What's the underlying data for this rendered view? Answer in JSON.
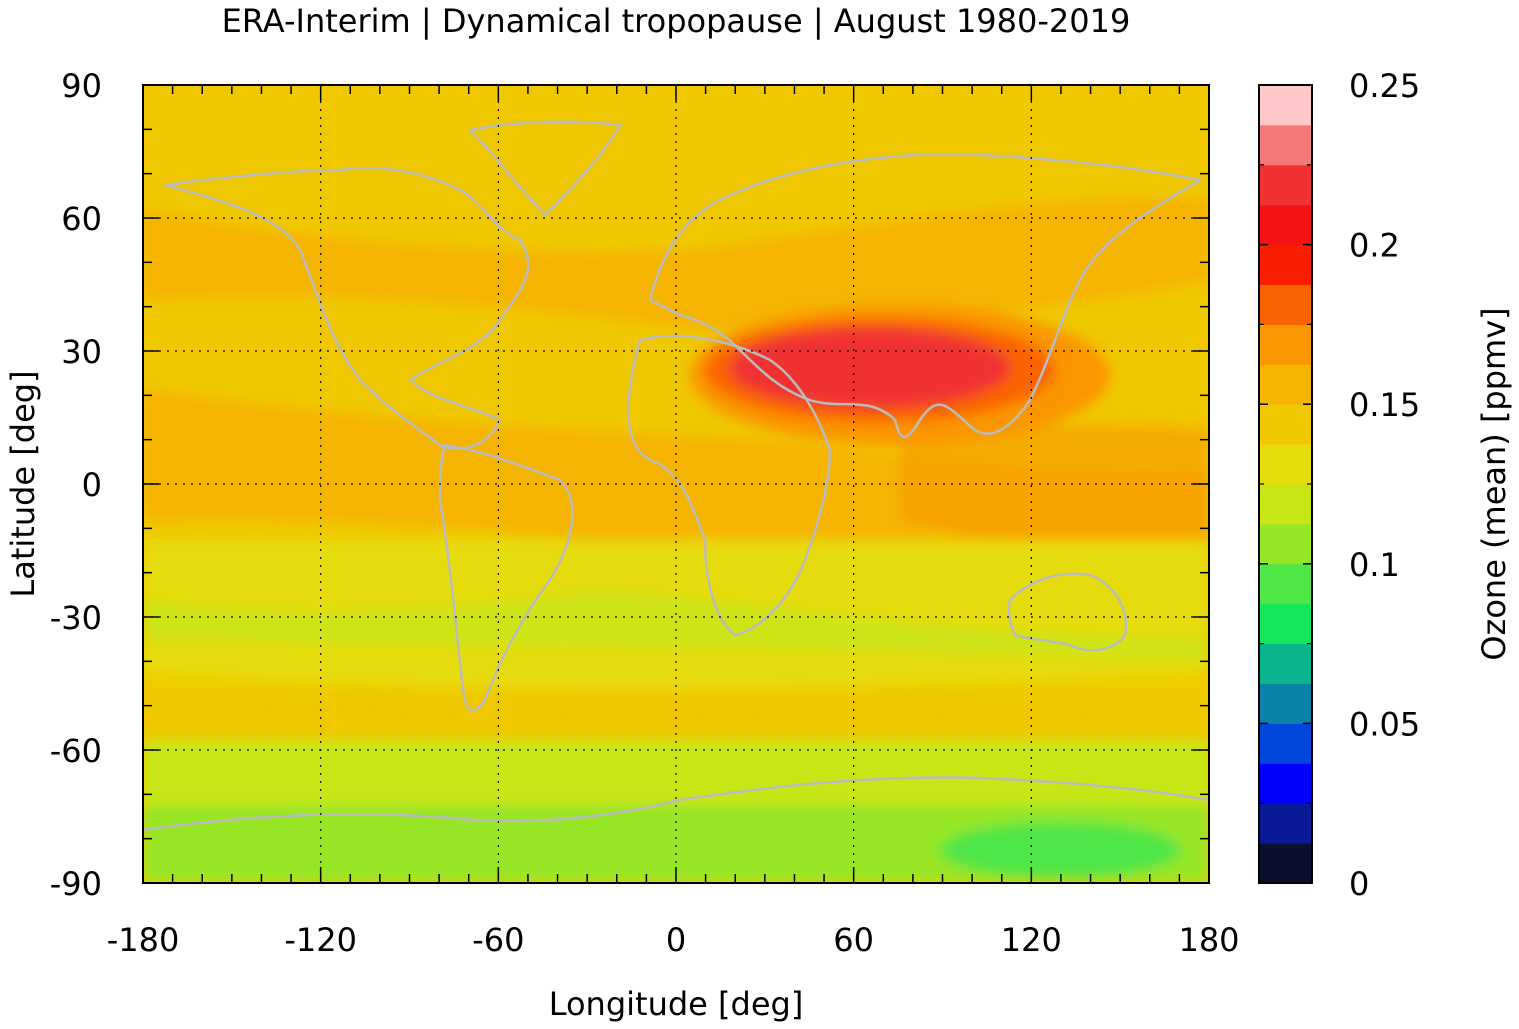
{
  "chart_data": {
    "type": "heatmap",
    "title": "ERA-Interim | Dynamical tropopause | August 1980-2019",
    "xlabel": "Longitude [deg]",
    "ylabel": "Latitude [deg]",
    "xlim": [
      -180,
      180
    ],
    "ylim": [
      -90,
      90
    ],
    "x_ticks": [
      "-180",
      "-120",
      "-60",
      "0",
      "60",
      "120",
      "180"
    ],
    "y_ticks": [
      "90",
      "60",
      "30",
      "0",
      "-30",
      "-60",
      "-90"
    ],
    "grid": true,
    "colorbar": {
      "label": "Ozone (mean) [ppmv]",
      "range": [
        0,
        0.25
      ],
      "step": 0.0125,
      "ticks": [
        "0",
        "0.05",
        "0.1",
        "0.15",
        "0.2",
        "0.25"
      ],
      "colors": [
        "#0a0f2e",
        "#0a1a96",
        "#0000ff",
        "#0046dc",
        "#0a82aa",
        "#0ab48c",
        "#14e65a",
        "#50e646",
        "#96e628",
        "#c8e614",
        "#e6dc0a",
        "#f0c800",
        "#f5b400",
        "#fa9600",
        "#fa6400",
        "#fa1e00",
        "#f51414",
        "#f03232",
        "#f57878",
        "#ffc8c8"
      ]
    },
    "field_description_levels": {
      "background": 0.145,
      "tropics": 0.16,
      "asian_monsoon_anticyclone_max": 0.215,
      "southern_midlatitudes": 0.135,
      "antarctic": 0.105
    }
  }
}
